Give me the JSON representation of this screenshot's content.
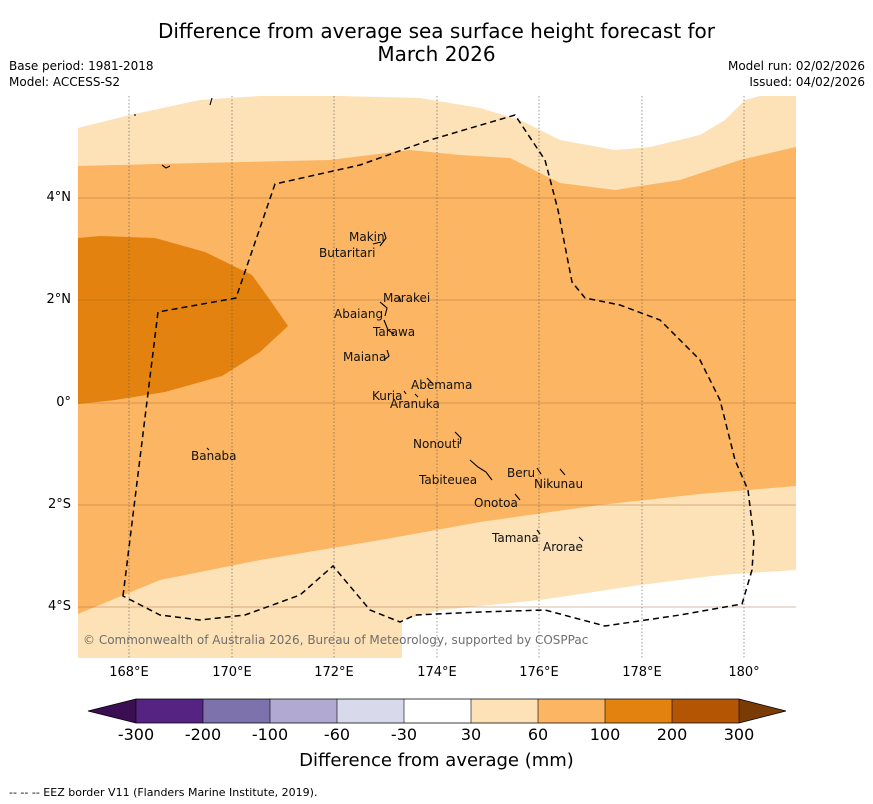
{
  "title": "Difference from average sea surface height forecast for",
  "title_line2": "March 2026",
  "meta_left": {
    "base_period": "Base period: 1981-2018",
    "model": "Model: ACCESS-S2"
  },
  "meta_right": {
    "model_run": "Model run: 02/02/2026",
    "issued": "Issued: 04/02/2026"
  },
  "lat_ticks": [
    "4°N",
    "2°N",
    "0°",
    "2°S",
    "4°S"
  ],
  "lon_ticks": [
    "168°E",
    "170°E",
    "172°E",
    "174°E",
    "176°E",
    "178°E",
    "180°"
  ],
  "islands": [
    "Makin",
    "Butaritari",
    "Marakei",
    "Abaiang",
    "Tarawa",
    "Maiana",
    "Abemama",
    "Kuria",
    "Aranuka",
    "Banaba",
    "Nonouti",
    "Beru",
    "Nikunau",
    "Tabiteuea",
    "Onotoa",
    "Tamana",
    "Arorae"
  ],
  "copyright": "© Commonwealth of Australia 2026, Bureau of Meteorology, supported by COSPPac",
  "colorbar": {
    "labels": [
      "-300",
      "-200",
      "-100",
      "-60",
      "-30",
      "30",
      "60",
      "100",
      "200",
      "300"
    ],
    "colors": [
      "#3b0d52",
      "#552483",
      "#7e72ad",
      "#b1a9d2",
      "#d9d9ec",
      "#ffffff",
      "#fde1b7",
      "#fbb563",
      "#e3820f",
      "#b45504",
      "#7b3b05"
    ],
    "title": "Difference from average (mm)"
  },
  "footnote": "--  --  -- EEZ border V11 (Flanders Marine Institute, 2019).",
  "colors": {
    "band_light": "#fde1b7",
    "band_mid": "#fbb563",
    "band_dark": "#e3820f"
  }
}
